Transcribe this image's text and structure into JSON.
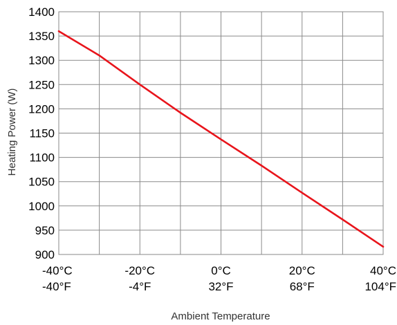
{
  "chart_data": {
    "type": "line",
    "xlabel": "Ambient Temperature",
    "ylabel": "Heating Power (W)",
    "xlim": [
      -40,
      40
    ],
    "ylim": [
      900,
      1400
    ],
    "grid": true,
    "y_ticks": [
      900,
      950,
      1000,
      1050,
      1100,
      1150,
      1200,
      1250,
      1300,
      1350,
      1400
    ],
    "x_gridlines": [
      -40,
      -30,
      -20,
      -10,
      0,
      10,
      20,
      30,
      40
    ],
    "x_tick_labels": [
      {
        "x": -40,
        "celsius": "-40°C",
        "fahrenheit": "-40°F"
      },
      {
        "x": -20,
        "celsius": "-20°C",
        "fahrenheit": "-4°F"
      },
      {
        "x": 0,
        "celsius": "0°C",
        "fahrenheit": "32°F"
      },
      {
        "x": 20,
        "celsius": "20°C",
        "fahrenheit": "68°F"
      },
      {
        "x": 40,
        "celsius": "40°C",
        "fahrenheit": "104°F"
      }
    ],
    "series": [
      {
        "color": "#e8141b",
        "x": [
          -40,
          -30,
          -20,
          -10,
          0,
          10,
          20,
          30,
          40
        ],
        "values": [
          1360,
          1310,
          1250,
          1192,
          1137,
          1083,
          1027,
          972,
          916
        ]
      }
    ]
  }
}
